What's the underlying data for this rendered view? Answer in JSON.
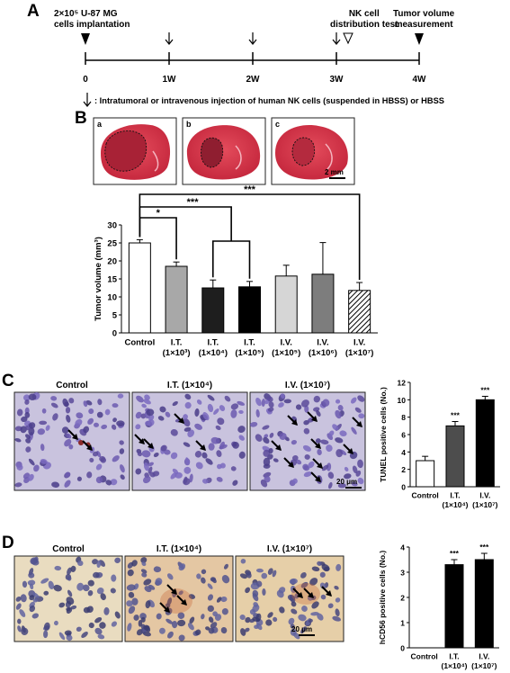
{
  "panelA": {
    "label": "A",
    "start_event": "2×10⁵ U-87 MG cells implantation",
    "start_event_line1": "2×10⁵ U-87 MG",
    "start_event_line2": "cells implantation",
    "nk_event_line1": "NK cell",
    "nk_event_line2": "distribution test",
    "tumor_event_line1": "Tumor volume",
    "tumor_event_line2": "measurement",
    "ticks": [
      "0",
      "1W",
      "2W",
      "3W",
      "4W"
    ],
    "legend": ": Intratumoral or intravenous injection  of  human NK cells (suspended in HBSS) or HBSS"
  },
  "panelB": {
    "label": "B",
    "images": [
      "a",
      "b",
      "c"
    ],
    "scale_bar": "2 mm"
  },
  "panelC": {
    "label": "C",
    "images": [
      "Control",
      "I.T. (1×10⁴)",
      "I.V. (1×10⁷)"
    ],
    "scale_bar": "20 μm"
  },
  "panelD": {
    "label": "D",
    "images": [
      "Control",
      "I.T. (1×10⁴)",
      "I.V. (1×10⁷)"
    ],
    "scale_bar": "20 μm"
  },
  "colors": {
    "he_stain": "#d8344a",
    "tunel_bg": "#c9c3de",
    "ihc_bg": "#e9dcc0"
  },
  "chart_data": [
    {
      "id": "B",
      "type": "bar",
      "ylabel": "Tumor volume (mm³)",
      "ylim": [
        0,
        30
      ],
      "yticks": [
        0,
        5,
        10,
        15,
        20,
        25,
        30
      ],
      "categories": [
        "Control",
        "I.T. (1×10³)",
        "I.T. (1×10⁴)",
        "I.T. (1×10⁵)",
        "I.V. (1×10⁵)",
        "I.V. (1×10⁶)",
        "I.V. (1×10⁷)"
      ],
      "cat_line1": [
        "Control",
        "I.T.",
        "I.T.",
        "I.T.",
        "I.V.",
        "I.V.",
        "I.V."
      ],
      "cat_line2": [
        "",
        "(1×10³)",
        "(1×10⁴)",
        "(1×10⁵)",
        "(1×10⁵)",
        "(1×10⁶)",
        "(1×10⁷)"
      ],
      "values": [
        25.0,
        18.5,
        12.5,
        12.8,
        15.8,
        16.3,
        11.8
      ],
      "errors": [
        0.9,
        1.2,
        2.2,
        1.5,
        3.0,
        8.8,
        2.2
      ],
      "fills": [
        "#ffffff",
        "#a8a8a8",
        "#1e1e1e",
        "#000000",
        "#d6d6d6",
        "#7d7d7d",
        "hatch"
      ],
      "significance": [
        "*",
        "***",
        "***"
      ]
    },
    {
      "id": "C",
      "type": "bar",
      "ylabel": "TUNEL positive cells (No.)",
      "ylim": [
        0,
        12
      ],
      "yticks": [
        0,
        2,
        4,
        6,
        8,
        10,
        12
      ],
      "categories": [
        "Control",
        "I.T. (1×10⁴)",
        "I.V. (1×10⁷)"
      ],
      "cat_line1": [
        "Control",
        "I.T.",
        "I.V."
      ],
      "cat_line2": [
        "",
        "(1×10⁴)",
        "(1×10⁷)"
      ],
      "values": [
        3.0,
        7.0,
        10.0
      ],
      "errors": [
        0.5,
        0.5,
        0.4
      ],
      "fills": [
        "#ffffff",
        "#4d4d4d",
        "#000000"
      ],
      "significance": [
        "",
        "***",
        "***"
      ]
    },
    {
      "id": "D",
      "type": "bar",
      "ylabel": "hCD56 positive cells (No.)",
      "ylim": [
        0,
        4
      ],
      "yticks": [
        0,
        1,
        2,
        3,
        4
      ],
      "categories": [
        "Control",
        "I.T. (1×10⁴)",
        "I.V. (1×10⁷)"
      ],
      "cat_line1": [
        "Control",
        "I.T.",
        "I.V."
      ],
      "cat_line2": [
        "",
        "(1×10⁴)",
        "(1×10⁷)"
      ],
      "values": [
        0,
        3.3,
        3.5
      ],
      "errors": [
        0,
        0.2,
        0.25
      ],
      "fills": [
        "#ffffff",
        "#000000",
        "#000000"
      ],
      "significance": [
        "",
        "***",
        "***"
      ]
    }
  ]
}
